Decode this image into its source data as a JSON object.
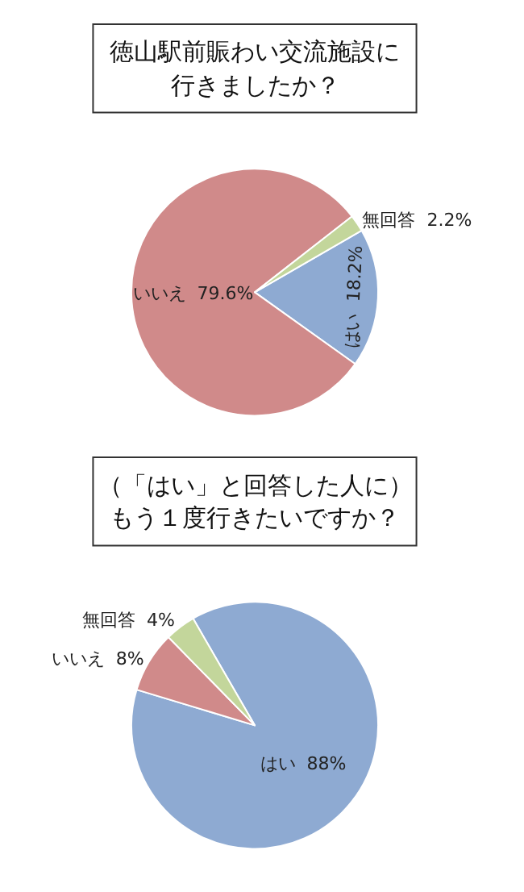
{
  "chart_data": [
    {
      "type": "pie",
      "title": "徳山駅前賑わい交流施設に",
      "subtitle": "行きましたか？",
      "categories": [
        "はい",
        "いいえ",
        "無回答"
      ],
      "values": [
        18.2,
        79.6,
        2.2
      ],
      "colors": [
        "#8eaad2",
        "#d08a8a",
        "#c3d69b"
      ],
      "value_labels": [
        "18.2%",
        "79.6%",
        "2.2%"
      ]
    },
    {
      "type": "pie",
      "title": "（「はい」と回答した人に）",
      "subtitle": "もう１度行きたいですか？",
      "categories": [
        "はい",
        "いいえ",
        "無回答"
      ],
      "values": [
        88,
        8,
        4
      ],
      "colors": [
        "#8eaad2",
        "#d08a8a",
        "#c3d69b"
      ],
      "value_labels": [
        "88%",
        "8%",
        "4%"
      ]
    }
  ]
}
